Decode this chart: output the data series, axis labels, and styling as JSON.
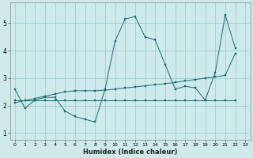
{
  "xlabel": "Humidex (Indice chaleur)",
  "background_color": "#ceeaea",
  "grid_color": "#9ec8c8",
  "line_color": "#1a6b6b",
  "xlim": [
    -0.5,
    23.5
  ],
  "ylim": [
    0.75,
    5.75
  ],
  "yticks": [
    1,
    2,
    3,
    4,
    5
  ],
  "xticks": [
    0,
    1,
    2,
    3,
    4,
    5,
    6,
    7,
    8,
    9,
    10,
    11,
    12,
    13,
    14,
    15,
    16,
    17,
    18,
    19,
    20,
    21,
    22,
    23
  ],
  "line1_x": [
    0,
    1,
    2,
    3,
    4,
    5,
    6,
    7,
    8,
    9,
    10,
    11,
    12,
    13,
    14,
    15,
    16,
    17,
    18,
    19,
    20,
    21,
    22
  ],
  "line1_y": [
    2.6,
    1.9,
    2.2,
    2.3,
    2.3,
    1.8,
    1.6,
    1.5,
    1.4,
    2.6,
    4.35,
    5.15,
    5.25,
    4.5,
    4.4,
    3.5,
    2.6,
    2.7,
    2.65,
    2.2,
    3.2,
    5.3,
    4.1
  ],
  "line2_x": [
    0,
    1,
    2,
    3,
    4,
    5,
    6,
    7,
    8,
    9,
    10,
    11,
    12,
    13,
    14,
    15,
    16,
    17,
    18,
    19,
    20,
    21,
    22
  ],
  "line2_y": [
    2.1,
    2.18,
    2.26,
    2.34,
    2.42,
    2.5,
    2.54,
    2.54,
    2.54,
    2.56,
    2.6,
    2.64,
    2.68,
    2.72,
    2.76,
    2.8,
    2.84,
    2.9,
    2.95,
    3.0,
    3.05,
    3.1,
    3.9
  ],
  "line3_x": [
    0,
    1,
    2,
    3,
    4,
    5,
    6,
    7,
    8,
    9,
    10,
    11,
    12,
    13,
    14,
    15,
    16,
    17,
    18,
    19,
    20,
    21,
    22
  ],
  "line3_y": [
    2.2,
    2.2,
    2.2,
    2.2,
    2.2,
    2.2,
    2.2,
    2.2,
    2.2,
    2.2,
    2.2,
    2.2,
    2.2,
    2.2,
    2.2,
    2.2,
    2.2,
    2.2,
    2.2,
    2.2,
    2.2,
    2.2,
    2.2
  ]
}
